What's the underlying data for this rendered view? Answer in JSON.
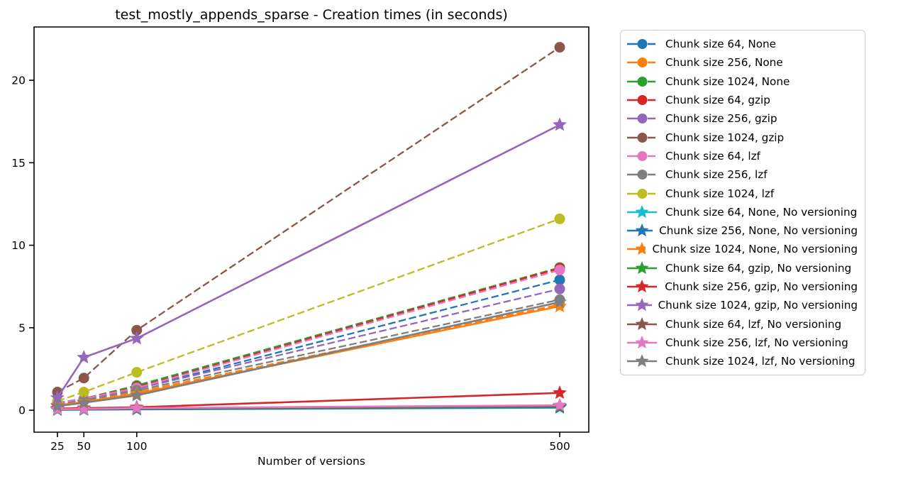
{
  "figure": {
    "background": "#ffffff",
    "axis_color": "#000000"
  },
  "chart_data": {
    "type": "line",
    "title": "test_mostly_appends_sparse - Creation times (in seconds)",
    "xlabel": "Number of versions",
    "ylabel": "",
    "x": [
      25,
      50,
      100,
      500
    ],
    "x_ticks": [
      25,
      50,
      100,
      500
    ],
    "y_ticks": [
      0,
      5,
      10,
      15,
      20
    ],
    "xlim": [
      2.9,
      527.5
    ],
    "ylim": [
      -1.33,
      23.23
    ],
    "grid": false,
    "legend_position": "outside-right",
    "series": [
      {
        "label": "Chunk size 64, None",
        "color": "#1f77b4",
        "line": "dashed",
        "marker": "circle",
        "values": [
          0.4,
          0.65,
          1.3,
          7.9
        ]
      },
      {
        "label": "Chunk size 256, None",
        "color": "#ff7f0e",
        "line": "dashed",
        "marker": "circle",
        "values": [
          0.35,
          0.55,
          1.1,
          6.4
        ]
      },
      {
        "label": "Chunk size 1024, None",
        "color": "#2ca02c",
        "line": "dashed",
        "marker": "circle",
        "values": [
          0.45,
          0.7,
          1.5,
          8.65
        ]
      },
      {
        "label": "Chunk size 64, gzip",
        "color": "#d62728",
        "line": "dashed",
        "marker": "circle",
        "values": [
          0.45,
          0.7,
          1.4,
          8.6
        ]
      },
      {
        "label": "Chunk size 256, gzip",
        "color": "#9467bd",
        "line": "dashed",
        "marker": "circle",
        "values": [
          0.4,
          0.65,
          1.3,
          7.35
        ]
      },
      {
        "label": "Chunk size 1024, gzip",
        "color": "#8c564b",
        "line": "dashed",
        "marker": "circle",
        "values": [
          1.1,
          1.95,
          4.85,
          22.0
        ]
      },
      {
        "label": "Chunk size 64, lzf",
        "color": "#e377c2",
        "line": "dashed",
        "marker": "circle",
        "values": [
          0.45,
          0.7,
          1.35,
          8.5
        ]
      },
      {
        "label": "Chunk size 256, lzf",
        "color": "#7f7f7f",
        "line": "dashed",
        "marker": "circle",
        "values": [
          0.35,
          0.6,
          1.2,
          6.7
        ]
      },
      {
        "label": "Chunk size 1024, lzf",
        "color": "#bcbd22",
        "line": "dashed",
        "marker": "circle",
        "values": [
          0.55,
          1.1,
          2.3,
          11.6
        ]
      },
      {
        "label": "Chunk size 64, None, No versioning",
        "color": "#17becf",
        "line": "solid",
        "marker": "star",
        "values": [
          0.02,
          0.03,
          0.05,
          0.15
        ]
      },
      {
        "label": "Chunk size 256, None, No versioning",
        "color": "#1f77b4",
        "line": "solid",
        "marker": "star",
        "values": [
          0.03,
          0.04,
          0.06,
          0.18
        ]
      },
      {
        "label": "Chunk size 1024, None, No versioning",
        "color": "#ff7f0e",
        "line": "solid",
        "marker": "star",
        "values": [
          0.3,
          0.5,
          1.0,
          6.3
        ]
      },
      {
        "label": "Chunk size 64, gzip, No versioning",
        "color": "#2ca02c",
        "line": "solid",
        "marker": "star",
        "values": [
          0.04,
          0.06,
          0.1,
          0.22
        ]
      },
      {
        "label": "Chunk size 256, gzip, No versioning",
        "color": "#d62728",
        "line": "solid",
        "marker": "star",
        "values": [
          0.1,
          0.13,
          0.18,
          1.05
        ]
      },
      {
        "label": "Chunk size 1024, gzip, No versioning",
        "color": "#9467bd",
        "line": "solid",
        "marker": "star",
        "values": [
          0.75,
          3.2,
          4.35,
          17.3
        ]
      },
      {
        "label": "Chunk size 64, lzf, No versioning",
        "color": "#8c564b",
        "line": "solid",
        "marker": "star",
        "values": [
          0.05,
          0.07,
          0.11,
          0.25
        ]
      },
      {
        "label": "Chunk size 256, lzf, No versioning",
        "color": "#e377c2",
        "line": "solid",
        "marker": "star",
        "values": [
          0.06,
          0.08,
          0.13,
          0.3
        ]
      },
      {
        "label": "Chunk size 1024, lzf, No versioning",
        "color": "#7f7f7f",
        "line": "solid",
        "marker": "star",
        "values": [
          0.25,
          0.45,
          0.9,
          6.55
        ]
      }
    ]
  }
}
